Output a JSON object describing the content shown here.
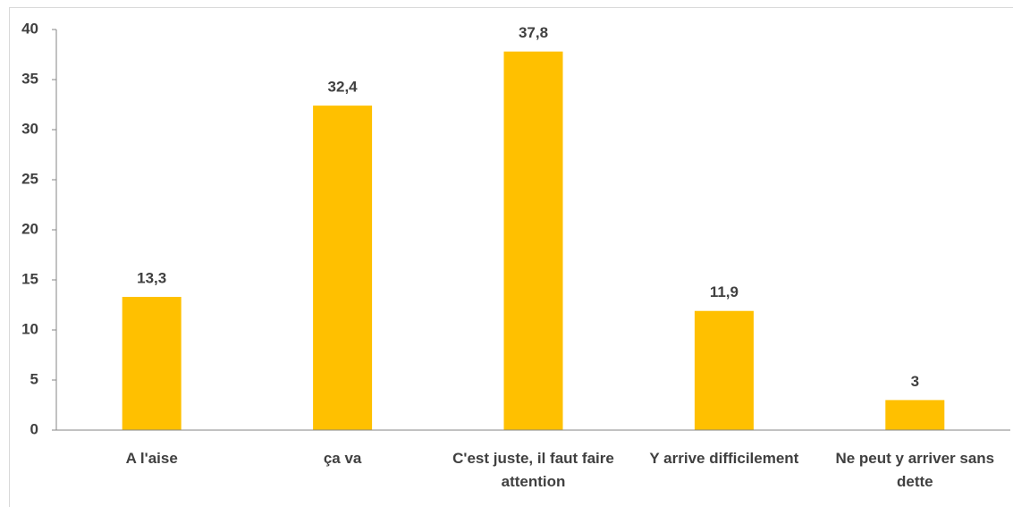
{
  "chart_data": {
    "type": "bar",
    "categories": [
      "A l'aise",
      "ça va",
      "C'est juste, il faut faire attention",
      "Y arrive difficilement",
      "Ne peut y arriver sans dette"
    ],
    "values": [
      13.3,
      32.4,
      37.8,
      11.9,
      3
    ],
    "value_labels": [
      "13,3",
      "32,4",
      "37,8",
      "11,9",
      "3"
    ],
    "color": "#ffc000",
    "ylim": [
      0,
      40
    ],
    "yticks": [
      0,
      5,
      10,
      15,
      20,
      25,
      30,
      35,
      40
    ],
    "grid": false
  }
}
